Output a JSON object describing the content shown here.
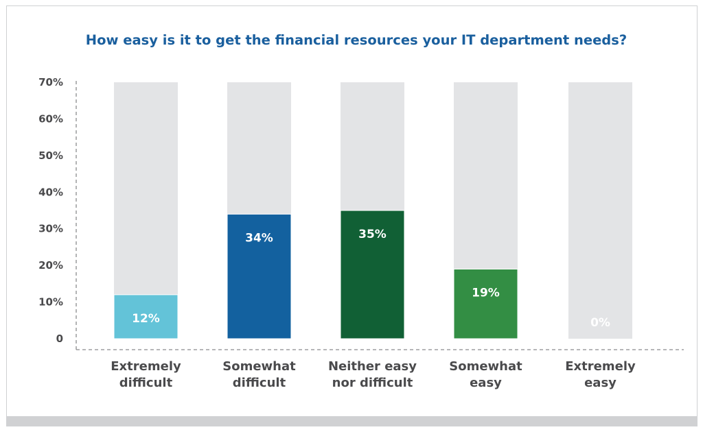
{
  "chart_data": {
    "type": "bar",
    "title": "How easy is it to get the financial resources your IT department needs?",
    "xlabel": "",
    "ylabel": "",
    "ylim": [
      0,
      70
    ],
    "yticks": [
      0,
      10,
      20,
      30,
      40,
      50,
      60,
      70
    ],
    "ytick_labels": [
      "0",
      "10%",
      "20%",
      "30%",
      "40%",
      "50%",
      "60%",
      "70%"
    ],
    "categories": [
      [
        "Extremely",
        "difficult"
      ],
      [
        "Somewhat",
        "difficult"
      ],
      [
        "Neither easy",
        "nor difficult"
      ],
      [
        "Somewhat",
        "easy"
      ],
      [
        "Extremely",
        "easy"
      ]
    ],
    "values": [
      12,
      34,
      35,
      19,
      0
    ],
    "value_labels": [
      "12%",
      "34%",
      "35%",
      "19%",
      "0%"
    ],
    "colors": [
      "#63c3d8",
      "#13619f",
      "#116035",
      "#338e44",
      "#e3e4e6"
    ],
    "background_bar_color": "#e3e4e6",
    "grid": false,
    "legend": "none"
  }
}
